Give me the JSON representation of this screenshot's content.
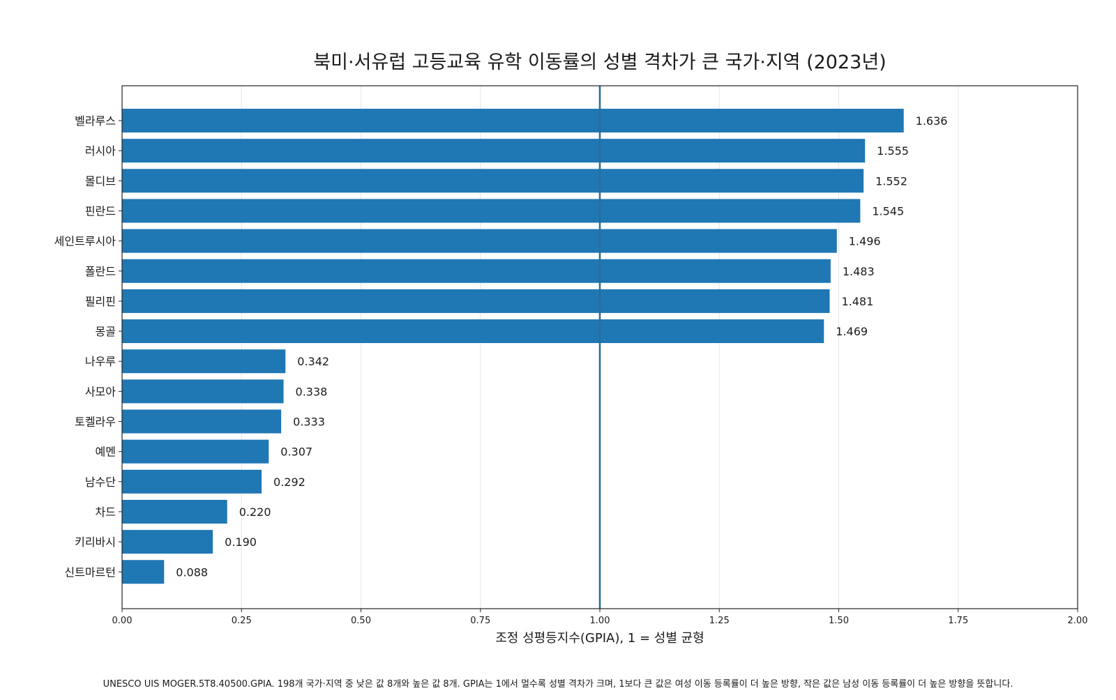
{
  "chart_data": {
    "type": "bar",
    "orientation": "horizontal",
    "title": "북미·서유럽 고등교육 유학 이동률의 성별 격차가 큰 국가·지역 (2023년)",
    "xlabel": "조정 성평등지수(GPIA), 1 = 성별 균형",
    "ylabel": "",
    "xlim": [
      0,
      2.0
    ],
    "x_ticks": [
      "0.00",
      "0.25",
      "0.50",
      "0.75",
      "1.00",
      "1.25",
      "1.50",
      "1.75",
      "2.00"
    ],
    "x_tick_values": [
      0,
      0.25,
      0.5,
      0.75,
      1.0,
      1.25,
      1.5,
      1.75,
      2.0
    ],
    "grid": "vertical",
    "reference_line": 1.0,
    "bar_color": "#1f77b4",
    "reference_line_color": "#2a6f97",
    "categories": [
      "벨라루스",
      "러시아",
      "몰디브",
      "핀란드",
      "세인트루시아",
      "폴란드",
      "필리핀",
      "몽골",
      "나우루",
      "사모아",
      "토켈라우",
      "예멘",
      "남수단",
      "차드",
      "키리바시",
      "신트마르턴"
    ],
    "values": [
      1.636,
      1.555,
      1.552,
      1.545,
      1.496,
      1.483,
      1.481,
      1.469,
      0.342,
      0.338,
      0.333,
      0.307,
      0.292,
      0.22,
      0.19,
      0.088
    ],
    "value_labels": [
      "1.636",
      "1.555",
      "1.552",
      "1.545",
      "1.496",
      "1.483",
      "1.481",
      "1.469",
      "0.342",
      "0.338",
      "0.333",
      "0.307",
      "0.292",
      "0.220",
      "0.190",
      "0.088"
    ],
    "footnote": "UNESCO UIS MOGER.5T8.40500.GPIA. 198개 국가·지역 중 낮은 값 8개와 높은 값 8개. GPIA는 1에서 멀수록 성별 격차가 크며, 1보다 큰 값은 여성 이동 등록률이 더 높은 방향, 작은 값은 남성 이동 등록률이 더 높은 방향을 뜻합니다."
  }
}
